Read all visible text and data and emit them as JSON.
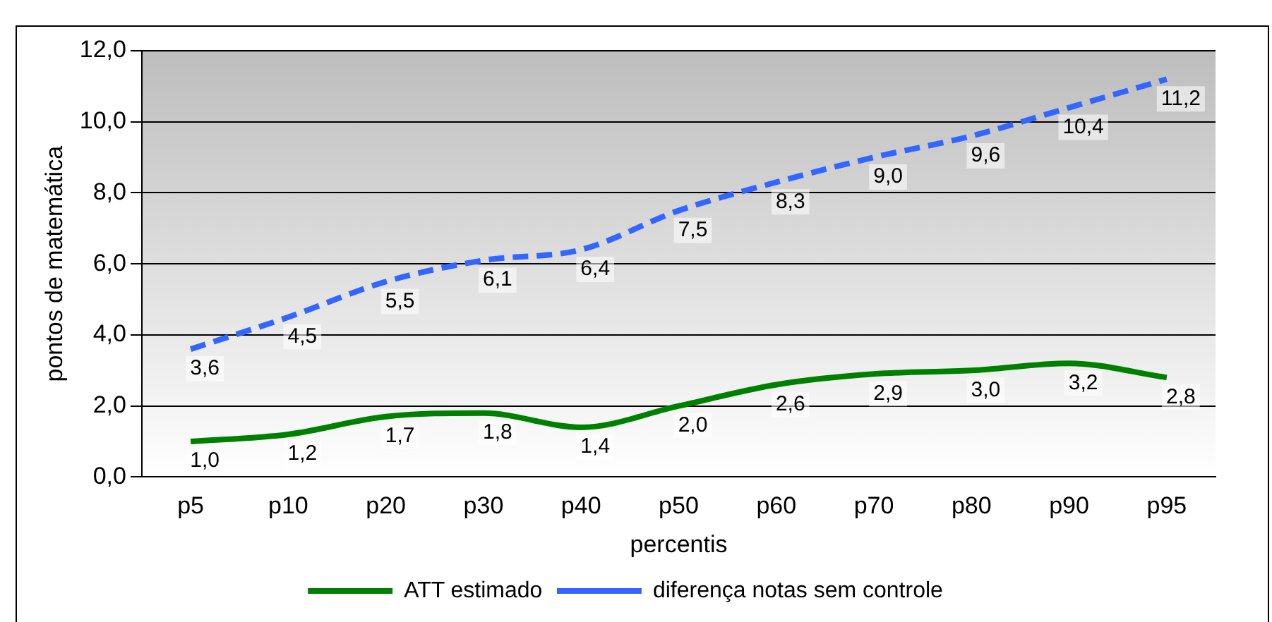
{
  "chart_data": {
    "type": "line",
    "xlabel": "percentis",
    "ylabel": "pontos de matemática",
    "categories": [
      "p5",
      "p10",
      "p20",
      "p30",
      "p40",
      "p50",
      "p60",
      "p70",
      "p80",
      "p90",
      "p95"
    ],
    "series": [
      {
        "name": "ATT estimado",
        "color": "#008000",
        "line_style": "solid",
        "values": [
          1.0,
          1.2,
          1.7,
          1.8,
          1.4,
          2.0,
          2.6,
          2.9,
          3.0,
          3.2,
          2.8
        ],
        "value_labels": [
          "1,0",
          "1,2",
          "1,7",
          "1,8",
          "1,4",
          "2,0",
          "2,6",
          "2,9",
          "3,0",
          "3,2",
          "2,8"
        ]
      },
      {
        "name": "diferença notas sem controle",
        "color": "#3366ff",
        "line_style": "dashed",
        "values": [
          3.6,
          4.5,
          5.5,
          6.1,
          6.4,
          7.5,
          8.3,
          9.0,
          9.6,
          10.4,
          11.2
        ],
        "value_labels": [
          "3,6",
          "4,5",
          "5,5",
          "6,1",
          "6,4",
          "7,5",
          "8,3",
          "9,0",
          "9,6",
          "10,4",
          "11,2"
        ]
      }
    ],
    "ylim": [
      0,
      12
    ],
    "yticks": [
      {
        "value": 0,
        "label": "0,0"
      },
      {
        "value": 2,
        "label": "2,0"
      },
      {
        "value": 4,
        "label": "4,0"
      },
      {
        "value": 6,
        "label": "6,0"
      },
      {
        "value": 8,
        "label": "8,0"
      },
      {
        "value": 10,
        "label": "10,0"
      },
      {
        "value": 12,
        "label": "12,0"
      }
    ],
    "grid": "y",
    "legend": "bottom",
    "marker": "none"
  }
}
